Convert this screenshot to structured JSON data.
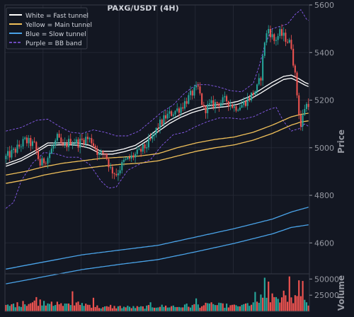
{
  "chart_data": {
    "type": "candlestick",
    "title": "PAXG/USDT (4H)",
    "ylabel": "Price",
    "volume_label": "Volume",
    "ylim": [
      4470,
      5600
    ],
    "price_ticks": [
      4600,
      4800,
      5000,
      5200,
      5400,
      5600
    ],
    "volume_ylim": [
      0,
      58000
    ],
    "volume_ticks": [
      25000,
      50000
    ],
    "volume_tick_labels": [
      "25000",
      "50000"
    ],
    "grid": true,
    "legend_position": "top-left",
    "legend": [
      {
        "label": "White = Fast tunnel",
        "color": "#ffffff",
        "style": "solid"
      },
      {
        "label": "Yellow = Main tunnel",
        "color": "#f0c05a",
        "style": "solid"
      },
      {
        "label": "Blue = Slow tunnel",
        "color": "#4aa3e8",
        "style": "solid"
      },
      {
        "label": "Purple = BB band",
        "color": "#8a5cf0",
        "style": "dashed"
      }
    ],
    "colors": {
      "up": "#26a69a",
      "down": "#ef5350",
      "fast": "#ffffff",
      "main": "#f0c05a",
      "slow": "#4aa3e8",
      "bb": "#8a5cf0"
    },
    "close_anchors": [
      [
        0,
        4960
      ],
      [
        5,
        4990
      ],
      [
        10,
        5030
      ],
      [
        15,
        5010
      ],
      [
        18,
        4930
      ],
      [
        22,
        4960
      ],
      [
        27,
        5040
      ],
      [
        30,
        5000
      ],
      [
        34,
        5030
      ],
      [
        38,
        5020
      ],
      [
        42,
        5040
      ],
      [
        45,
        5030
      ],
      [
        49,
        4970
      ],
      [
        52,
        4980
      ],
      [
        55,
        4910
      ],
      [
        58,
        4890
      ],
      [
        62,
        4940
      ],
      [
        66,
        4960
      ],
      [
        70,
        4980
      ],
      [
        74,
        5010
      ],
      [
        77,
        5040
      ],
      [
        80,
        5090
      ],
      [
        84,
        5130
      ],
      [
        88,
        5150
      ],
      [
        92,
        5170
      ],
      [
        95,
        5200
      ],
      [
        98,
        5230
      ],
      [
        101,
        5250
      ],
      [
        104,
        5160
      ],
      [
        108,
        5180
      ],
      [
        112,
        5190
      ],
      [
        116,
        5200
      ],
      [
        120,
        5170
      ],
      [
        124,
        5180
      ],
      [
        128,
        5210
      ],
      [
        132,
        5250
      ],
      [
        134,
        5300
      ],
      [
        136,
        5450
      ],
      [
        138,
        5500
      ],
      [
        141,
        5450
      ],
      [
        144,
        5480
      ],
      [
        147,
        5460
      ],
      [
        150,
        5430
      ],
      [
        152,
        5300
      ],
      [
        154,
        5150
      ],
      [
        155,
        5090
      ],
      [
        157,
        5170
      ],
      [
        159,
        5190
      ]
    ],
    "fast_upper": [
      [
        0,
        4932
      ],
      [
        8,
        4955
      ],
      [
        16,
        4990
      ],
      [
        22,
        5020
      ],
      [
        28,
        5020
      ],
      [
        34,
        5020
      ],
      [
        38,
        5020
      ],
      [
        44,
        5010
      ],
      [
        50,
        4985
      ],
      [
        56,
        4985
      ],
      [
        62,
        4995
      ],
      [
        68,
        5010
      ],
      [
        74,
        5040
      ],
      [
        80,
        5080
      ],
      [
        86,
        5115
      ],
      [
        92,
        5140
      ],
      [
        98,
        5160
      ],
      [
        104,
        5175
      ],
      [
        110,
        5180
      ],
      [
        116,
        5185
      ],
      [
        122,
        5195
      ],
      [
        128,
        5215
      ],
      [
        134,
        5245
      ],
      [
        140,
        5275
      ],
      [
        146,
        5300
      ],
      [
        150,
        5305
      ],
      [
        154,
        5290
      ],
      [
        157,
        5275
      ],
      [
        159,
        5268
      ]
    ],
    "fast_lower": [
      [
        0,
        4922
      ],
      [
        8,
        4945
      ],
      [
        16,
        4980
      ],
      [
        22,
        5010
      ],
      [
        28,
        5012
      ],
      [
        34,
        5012
      ],
      [
        38,
        5010
      ],
      [
        44,
        4998
      ],
      [
        50,
        4973
      ],
      [
        56,
        4973
      ],
      [
        62,
        4983
      ],
      [
        68,
        4997
      ],
      [
        74,
        5028
      ],
      [
        80,
        5068
      ],
      [
        86,
        5102
      ],
      [
        92,
        5128
      ],
      [
        98,
        5148
      ],
      [
        104,
        5162
      ],
      [
        110,
        5168
      ],
      [
        116,
        5173
      ],
      [
        122,
        5183
      ],
      [
        128,
        5202
      ],
      [
        134,
        5230
      ],
      [
        140,
        5260
      ],
      [
        146,
        5287
      ],
      [
        150,
        5292
      ],
      [
        154,
        5277
      ],
      [
        157,
        5264
      ],
      [
        159,
        5257
      ]
    ],
    "main_upper": [
      [
        0,
        4885
      ],
      [
        10,
        4900
      ],
      [
        20,
        4920
      ],
      [
        30,
        4935
      ],
      [
        40,
        4945
      ],
      [
        50,
        4955
      ],
      [
        60,
        4960
      ],
      [
        70,
        4965
      ],
      [
        80,
        4975
      ],
      [
        90,
        5000
      ],
      [
        100,
        5020
      ],
      [
        110,
        5035
      ],
      [
        120,
        5045
      ],
      [
        130,
        5065
      ],
      [
        140,
        5095
      ],
      [
        150,
        5130
      ],
      [
        155,
        5140
      ],
      [
        159,
        5145
      ]
    ],
    "main_lower": [
      [
        0,
        4850
      ],
      [
        10,
        4865
      ],
      [
        20,
        4885
      ],
      [
        30,
        4900
      ],
      [
        40,
        4912
      ],
      [
        50,
        4922
      ],
      [
        60,
        4930
      ],
      [
        70,
        4935
      ],
      [
        80,
        4945
      ],
      [
        90,
        4965
      ],
      [
        100,
        4985
      ],
      [
        110,
        5000
      ],
      [
        120,
        5012
      ],
      [
        130,
        5032
      ],
      [
        140,
        5060
      ],
      [
        150,
        5095
      ],
      [
        155,
        5108
      ],
      [
        159,
        5113
      ]
    ],
    "slow_upper": [
      [
        0,
        4490
      ],
      [
        20,
        4520
      ],
      [
        40,
        4550
      ],
      [
        60,
        4570
      ],
      [
        80,
        4590
      ],
      [
        100,
        4625
      ],
      [
        120,
        4660
      ],
      [
        140,
        4700
      ],
      [
        150,
        4730
      ],
      [
        159,
        4750
      ]
    ],
    "slow_lower": [
      [
        0,
        4428
      ],
      [
        20,
        4458
      ],
      [
        40,
        4488
      ],
      [
        60,
        4510
      ],
      [
        80,
        4530
      ],
      [
        100,
        4563
      ],
      [
        120,
        4598
      ],
      [
        140,
        4638
      ],
      [
        150,
        4665
      ],
      [
        159,
        4676
      ]
    ],
    "bb_upper": [
      [
        0,
        5070
      ],
      [
        8,
        5085
      ],
      [
        16,
        5115
      ],
      [
        22,
        5120
      ],
      [
        28,
        5090
      ],
      [
        34,
        5065
      ],
      [
        40,
        5060
      ],
      [
        46,
        5075
      ],
      [
        52,
        5065
      ],
      [
        58,
        5050
      ],
      [
        64,
        5050
      ],
      [
        70,
        5070
      ],
      [
        76,
        5110
      ],
      [
        82,
        5150
      ],
      [
        88,
        5180
      ],
      [
        94,
        5230
      ],
      [
        100,
        5265
      ],
      [
        106,
        5265
      ],
      [
        112,
        5255
      ],
      [
        118,
        5240
      ],
      [
        124,
        5235
      ],
      [
        130,
        5270
      ],
      [
        133,
        5340
      ],
      [
        136,
        5430
      ],
      [
        140,
        5500
      ],
      [
        144,
        5510
      ],
      [
        148,
        5520
      ],
      [
        152,
        5560
      ],
      [
        155,
        5580
      ],
      [
        158,
        5540
      ],
      [
        159,
        5535
      ]
    ],
    "bb_lower": [
      [
        0,
        4745
      ],
      [
        4,
        4770
      ],
      [
        8,
        4860
      ],
      [
        14,
        4935
      ],
      [
        20,
        4980
      ],
      [
        26,
        4975
      ],
      [
        32,
        4960
      ],
      [
        38,
        4960
      ],
      [
        44,
        4930
      ],
      [
        50,
        4860
      ],
      [
        54,
        4830
      ],
      [
        58,
        4835
      ],
      [
        64,
        4905
      ],
      [
        70,
        4930
      ],
      [
        76,
        4950
      ],
      [
        82,
        5010
      ],
      [
        88,
        5055
      ],
      [
        94,
        5065
      ],
      [
        100,
        5090
      ],
      [
        106,
        5110
      ],
      [
        112,
        5125
      ],
      [
        118,
        5125
      ],
      [
        124,
        5120
      ],
      [
        130,
        5130
      ],
      [
        134,
        5145
      ],
      [
        138,
        5160
      ],
      [
        142,
        5170
      ],
      [
        146,
        5110
      ],
      [
        150,
        5070
      ],
      [
        154,
        5080
      ],
      [
        157,
        5100
      ],
      [
        159,
        5090
      ]
    ],
    "volume_anchors": [
      [
        0,
        8000
      ],
      [
        10,
        12000
      ],
      [
        20,
        15000
      ],
      [
        30,
        9000
      ],
      [
        40,
        12000
      ],
      [
        50,
        6000
      ],
      [
        60,
        7000
      ],
      [
        70,
        6000
      ],
      [
        80,
        8000
      ],
      [
        90,
        7000
      ],
      [
        100,
        9000
      ],
      [
        110,
        10000
      ],
      [
        120,
        8000
      ],
      [
        130,
        12000
      ],
      [
        140,
        20000
      ],
      [
        150,
        18000
      ],
      [
        155,
        25000
      ],
      [
        159,
        10000
      ]
    ],
    "volume_spikes": [
      [
        4,
        12000
      ],
      [
        9,
        16000
      ],
      [
        16,
        22000
      ],
      [
        24,
        15000
      ],
      [
        32,
        12000
      ],
      [
        35,
        31000
      ],
      [
        46,
        21000
      ],
      [
        55,
        10000
      ],
      [
        76,
        14000
      ],
      [
        88,
        9000
      ],
      [
        95,
        12000
      ],
      [
        100,
        20000
      ],
      [
        108,
        14000
      ],
      [
        116,
        12000
      ],
      [
        124,
        10000
      ],
      [
        131,
        30000
      ],
      [
        134,
        26000
      ],
      [
        136,
        52000
      ],
      [
        138,
        46000
      ],
      [
        142,
        22000
      ],
      [
        146,
        32000
      ],
      [
        149,
        54000
      ],
      [
        152,
        25000
      ],
      [
        154,
        48000
      ],
      [
        156,
        47000
      ],
      [
        158,
        14000
      ]
    ]
  }
}
